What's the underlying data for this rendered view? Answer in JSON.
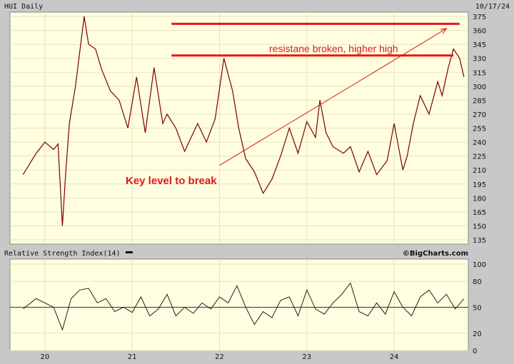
{
  "header": {
    "title": "HUI Daily",
    "date": "10/17/24"
  },
  "rsi_panel": {
    "title": "Relative Strength Index(14)",
    "watermark": "©BigCharts.com"
  },
  "annotations": {
    "resistance_text": "resistane broken, higher high",
    "key_level_text": "Key level to break"
  },
  "colors": {
    "background": "#fffee0",
    "frame": "#c8c8c8",
    "price": "#7a0000",
    "annotation": "#e0191b",
    "grid": "#e6e3b8"
  },
  "chart_data": [
    {
      "type": "line",
      "title": "HUI Daily",
      "x_ticks": [
        "20",
        "21",
        "22",
        "23",
        "24"
      ],
      "y_ticks": [
        135,
        150,
        165,
        180,
        195,
        210,
        225,
        240,
        255,
        270,
        285,
        300,
        315,
        330,
        345,
        360,
        375
      ],
      "ylim": [
        135,
        375
      ],
      "grid": true,
      "series": [
        {
          "x": [
            2019.75,
            2019.9,
            2020.0,
            2020.1,
            2020.15,
            2020.2,
            2020.24,
            2020.28,
            2020.35,
            2020.45,
            2020.5,
            2020.58,
            2020.65,
            2020.75,
            2020.85,
            2020.95,
            2021.05,
            2021.15,
            2021.25,
            2021.35,
            2021.4,
            2021.5,
            2021.6,
            2021.75,
            2021.85,
            2021.95,
            2022.05,
            2022.15,
            2022.22,
            2022.3,
            2022.4,
            2022.5,
            2022.6,
            2022.7,
            2022.8,
            2022.9,
            2023.0,
            2023.1,
            2023.15,
            2023.22,
            2023.3,
            2023.42,
            2023.5,
            2023.6,
            2023.7,
            2023.8,
            2023.92,
            2024.0,
            2024.1,
            2024.15,
            2024.22,
            2024.3,
            2024.4,
            2024.5,
            2024.55,
            2024.62,
            2024.68,
            2024.75,
            2024.8
          ],
          "values": [
            205,
            228,
            240,
            232,
            238,
            150,
            210,
            260,
            300,
            375,
            345,
            340,
            318,
            295,
            285,
            255,
            310,
            250,
            320,
            260,
            270,
            255,
            230,
            260,
            240,
            265,
            330,
            295,
            255,
            222,
            208,
            185,
            200,
            225,
            255,
            228,
            262,
            245,
            285,
            250,
            235,
            228,
            235,
            208,
            230,
            205,
            220,
            260,
            210,
            225,
            260,
            290,
            270,
            305,
            290,
            320,
            340,
            330,
            310
          ]
        }
      ],
      "lines": [
        {
          "type": "horizontal",
          "y": 367,
          "from_x": 2021.45,
          "to_x": 2024.75
        },
        {
          "type": "horizontal",
          "y": 333,
          "from_x": 2021.45,
          "to_x": 2024.68
        },
        {
          "type": "arrow",
          "from": [
            2022.0,
            215
          ],
          "to": [
            2024.6,
            362
          ]
        }
      ]
    },
    {
      "type": "line",
      "title": "Relative Strength Index(14)",
      "y_ticks": [
        0,
        20,
        50,
        80,
        100
      ],
      "ylim": [
        0,
        100
      ],
      "grid": true,
      "series": [
        {
          "x": [
            2019.75,
            2019.9,
            2020.0,
            2020.1,
            2020.2,
            2020.3,
            2020.4,
            2020.5,
            2020.6,
            2020.7,
            2020.8,
            2020.9,
            2021.0,
            2021.1,
            2021.2,
            2021.3,
            2021.4,
            2021.5,
            2021.6,
            2021.7,
            2021.8,
            2021.9,
            2022.0,
            2022.1,
            2022.2,
            2022.3,
            2022.4,
            2022.5,
            2022.6,
            2022.7,
            2022.8,
            2022.9,
            2023.0,
            2023.1,
            2023.2,
            2023.3,
            2023.4,
            2023.5,
            2023.6,
            2023.7,
            2023.8,
            2023.9,
            2024.0,
            2024.1,
            2024.2,
            2024.3,
            2024.4,
            2024.5,
            2024.6,
            2024.7,
            2024.8
          ],
          "values": [
            48,
            60,
            55,
            50,
            24,
            60,
            70,
            72,
            55,
            60,
            45,
            50,
            44,
            62,
            40,
            48,
            65,
            40,
            50,
            43,
            55,
            48,
            62,
            55,
            75,
            50,
            30,
            45,
            38,
            58,
            62,
            40,
            70,
            48,
            42,
            55,
            65,
            78,
            45,
            40,
            55,
            42,
            68,
            50,
            40,
            62,
            70,
            55,
            65,
            48,
            60
          ]
        }
      ]
    }
  ]
}
